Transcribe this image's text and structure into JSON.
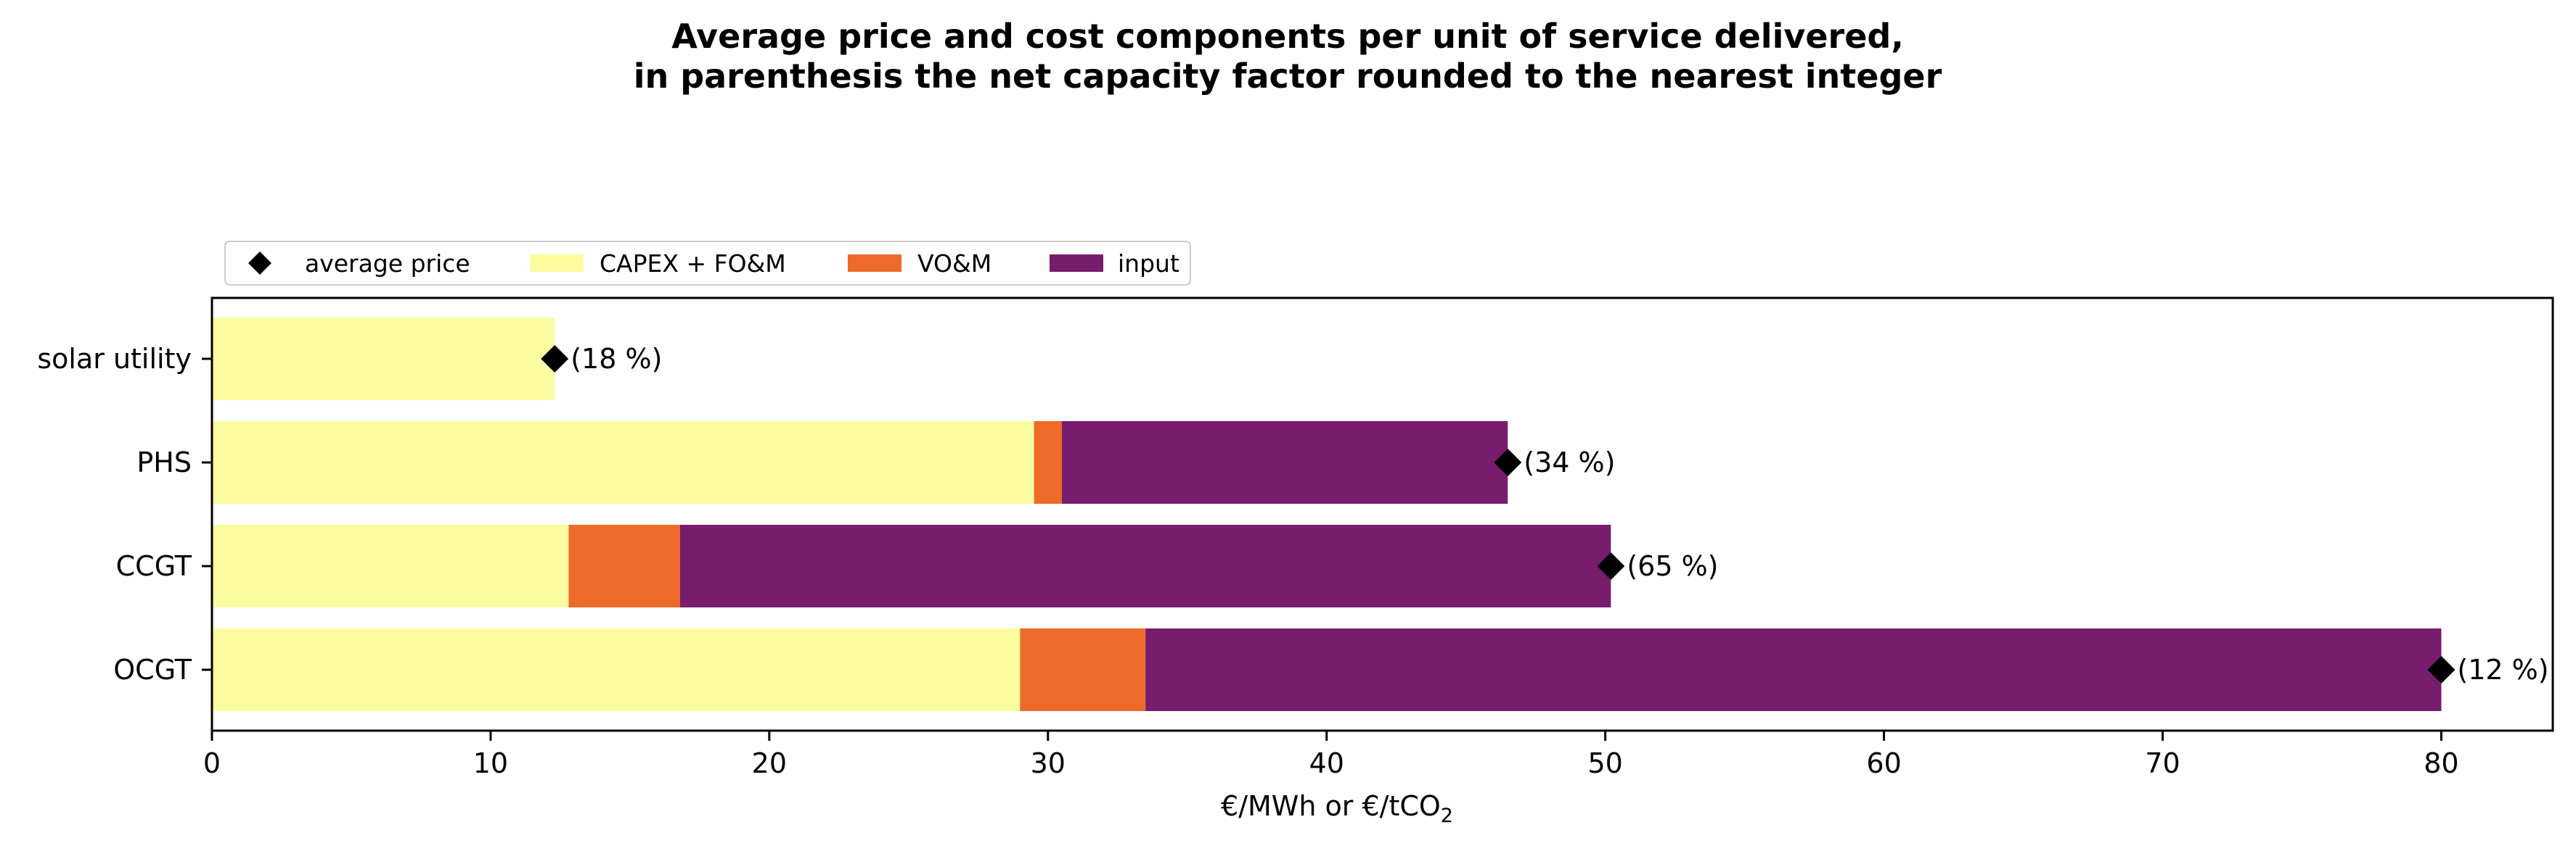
{
  "chart_data": {
    "type": "bar",
    "orientation": "horizontal",
    "stacked": true,
    "title": "Average price and cost components per unit of service delivered,",
    "subtitle": "in parenthesis the net capacity factor rounded to the nearest integer",
    "xlabel": "€/MWh or €/tCO",
    "xlabel_subscript": "2",
    "ylabel": "",
    "xlim": [
      0,
      84
    ],
    "xticks": [
      0,
      10,
      20,
      30,
      40,
      50,
      60,
      70,
      80
    ],
    "grid": false,
    "legend_position": "top-left, above plot",
    "categories": [
      "solar utility",
      "PHS",
      "CCGT",
      "OCGT"
    ],
    "series": [
      {
        "name": "CAPEX + FO&M",
        "color": "#fbfca0",
        "values": [
          12.3,
          29.5,
          12.8,
          29.0
        ]
      },
      {
        "name": "VO&M",
        "color": "#ed6a29",
        "values": [
          0,
          1.0,
          4.0,
          4.5
        ]
      },
      {
        "name": "input",
        "color": "#781c6d",
        "values": [
          0,
          16.0,
          33.4,
          46.5
        ]
      }
    ],
    "average_price": {
      "name": "average price",
      "marker": "diamond",
      "color": "#000000",
      "values": [
        12.3,
        46.5,
        50.2,
        80.0
      ]
    },
    "annotations": [
      "(18 %)",
      "(34 %)",
      "(65 %)",
      "(12 %)"
    ]
  }
}
